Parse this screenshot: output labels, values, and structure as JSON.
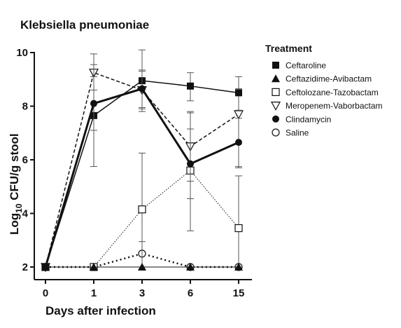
{
  "chart_data": {
    "type": "line",
    "title": "Klebsiella pneumoniae",
    "xlabel": "Days after infection",
    "ylabel_main": "Log",
    "ylabel_sub": "10",
    "ylabel_rest": " CFU/g stool",
    "categories": [
      "0",
      "1",
      "3",
      "6",
      "15"
    ],
    "ylim": [
      2,
      10
    ],
    "yticks": [
      2,
      4,
      6,
      8,
      10
    ],
    "grid": false,
    "legend_title": "Treatment",
    "legend_position": "right",
    "series": [
      {
        "name": "Ceftaroline",
        "marker": "square-filled",
        "line": "solid",
        "line_width": 1.5,
        "values": [
          2.0,
          7.65,
          8.95,
          8.75,
          8.5
        ],
        "err_low": [
          2.0,
          5.75,
          7.8,
          8.2,
          7.85
        ],
        "err_high": [
          2.0,
          9.55,
          10.1,
          9.25,
          9.1
        ]
      },
      {
        "name": "Ceftazidime-Avibactam",
        "marker": "triangle-filled",
        "line": "solid",
        "line_width": 1,
        "values": [
          2.0,
          2.0,
          2.0,
          2.0,
          2.0
        ],
        "err_low": [
          2.0,
          2.0,
          2.0,
          2.0,
          2.0
        ],
        "err_high": [
          2.0,
          2.0,
          2.0,
          2.0,
          2.0
        ]
      },
      {
        "name": "Ceftolozane-Tazobactam",
        "marker": "square-open",
        "line": "dotted-thin",
        "line_width": 1,
        "values": [
          2.0,
          2.0,
          4.15,
          5.6,
          3.45
        ],
        "err_low": [
          2.0,
          2.0,
          2.0,
          3.35,
          2.0
        ],
        "err_high": [
          2.0,
          2.0,
          6.25,
          7.8,
          5.4
        ]
      },
      {
        "name": "Meropenem-Vaborbactam",
        "marker": "triangle-down-open",
        "line": "dashed",
        "line_width": 1.5,
        "values": [
          2.0,
          9.25,
          8.6,
          6.5,
          7.7
        ],
        "err_low": [
          2.0,
          8.6,
          7.9,
          5.2,
          5.7
        ],
        "err_high": [
          2.0,
          9.95,
          9.3,
          7.75,
          8.65
        ]
      },
      {
        "name": "Clindamycin",
        "marker": "circle-filled",
        "line": "solid",
        "line_width": 3,
        "values": [
          2.0,
          8.1,
          8.65,
          5.85,
          6.65
        ],
        "err_low": [
          2.0,
          7.1,
          7.95,
          4.55,
          5.75
        ],
        "err_high": [
          2.0,
          9.1,
          9.35,
          7.15,
          7.55
        ]
      },
      {
        "name": "Saline",
        "marker": "circle-open",
        "line": "dotted-thick",
        "line_width": 2.5,
        "values": [
          2.0,
          2.0,
          2.5,
          2.0,
          2.0
        ],
        "err_low": [
          2.0,
          2.0,
          2.0,
          2.0,
          2.0
        ],
        "err_high": [
          2.0,
          2.0,
          2.95,
          2.0,
          2.0
        ]
      }
    ]
  }
}
